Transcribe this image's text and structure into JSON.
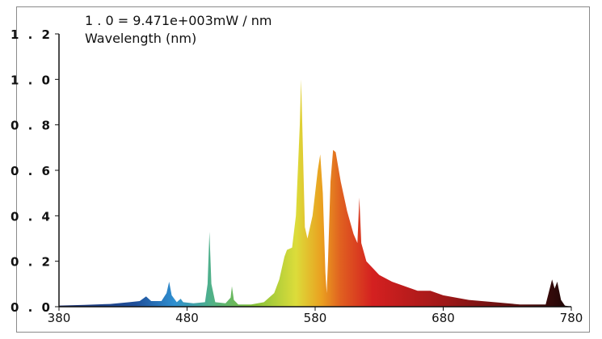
{
  "chart_data": {
    "type": "area",
    "title": "1 . 0 = 9.471e+003mW / nm",
    "xlabel": "Wavelength (nm)",
    "ylabel": "",
    "xlim": [
      380,
      780
    ],
    "ylim": [
      0,
      1.2
    ],
    "x_ticks": [
      "380",
      "480",
      "580",
      "680",
      "780"
    ],
    "y_ticks": [
      "0 . 0",
      "0 . 2",
      "0 . 4",
      "0 . 6",
      "0 . 8",
      "1 . 0",
      "1 . 2"
    ],
    "grid": false,
    "fill": "wavelength color gradient",
    "color_stops": [
      {
        "nm": 380,
        "color": "#1c2f6e"
      },
      {
        "nm": 440,
        "color": "#1f4f9a"
      },
      {
        "nm": 470,
        "color": "#2f8fd0"
      },
      {
        "nm": 498,
        "color": "#4fb08a"
      },
      {
        "nm": 530,
        "color": "#7fbf3a"
      },
      {
        "nm": 565,
        "color": "#dcdc3a"
      },
      {
        "nm": 585,
        "color": "#eaa020"
      },
      {
        "nm": 600,
        "color": "#e06020"
      },
      {
        "nm": 625,
        "color": "#d42020"
      },
      {
        "nm": 680,
        "color": "#a01818"
      },
      {
        "nm": 740,
        "color": "#5a1010"
      },
      {
        "nm": 780,
        "color": "#1a0606"
      }
    ],
    "points": [
      [
        380,
        0.005
      ],
      [
        400,
        0.008
      ],
      [
        420,
        0.012
      ],
      [
        435,
        0.02
      ],
      [
        443,
        0.025
      ],
      [
        448,
        0.045
      ],
      [
        452,
        0.025
      ],
      [
        460,
        0.025
      ],
      [
        464,
        0.06
      ],
      [
        466,
        0.11
      ],
      [
        468,
        0.05
      ],
      [
        472,
        0.02
      ],
      [
        475,
        0.035
      ],
      [
        477,
        0.02
      ],
      [
        485,
        0.015
      ],
      [
        494,
        0.02
      ],
      [
        496,
        0.1
      ],
      [
        497.5,
        0.33
      ],
      [
        499,
        0.1
      ],
      [
        502,
        0.02
      ],
      [
        510,
        0.015
      ],
      [
        514,
        0.04
      ],
      [
        515,
        0.09
      ],
      [
        516.5,
        0.03
      ],
      [
        520,
        0.01
      ],
      [
        530,
        0.01
      ],
      [
        540,
        0.02
      ],
      [
        548,
        0.06
      ],
      [
        552,
        0.12
      ],
      [
        556,
        0.22
      ],
      [
        558,
        0.25
      ],
      [
        562,
        0.26
      ],
      [
        565,
        0.4
      ],
      [
        568,
        0.8
      ],
      [
        569,
        1.0
      ],
      [
        570,
        0.8
      ],
      [
        572,
        0.35
      ],
      [
        574,
        0.3
      ],
      [
        578,
        0.4
      ],
      [
        582,
        0.6
      ],
      [
        584,
        0.67
      ],
      [
        586,
        0.5
      ],
      [
        588,
        0.15
      ],
      [
        589,
        0.06
      ],
      [
        590,
        0.2
      ],
      [
        592,
        0.55
      ],
      [
        594,
        0.69
      ],
      [
        596,
        0.68
      ],
      [
        600,
        0.55
      ],
      [
        605,
        0.42
      ],
      [
        610,
        0.32
      ],
      [
        613,
        0.28
      ],
      [
        614.5,
        0.48
      ],
      [
        616,
        0.28
      ],
      [
        620,
        0.2
      ],
      [
        630,
        0.14
      ],
      [
        640,
        0.11
      ],
      [
        660,
        0.07
      ],
      [
        670,
        0.07
      ],
      [
        680,
        0.05
      ],
      [
        700,
        0.03
      ],
      [
        720,
        0.02
      ],
      [
        740,
        0.01
      ],
      [
        760,
        0.01
      ],
      [
        765,
        0.12
      ],
      [
        767,
        0.08
      ],
      [
        769,
        0.11
      ],
      [
        772,
        0.03
      ],
      [
        775,
        0.005
      ],
      [
        780,
        0
      ]
    ]
  }
}
